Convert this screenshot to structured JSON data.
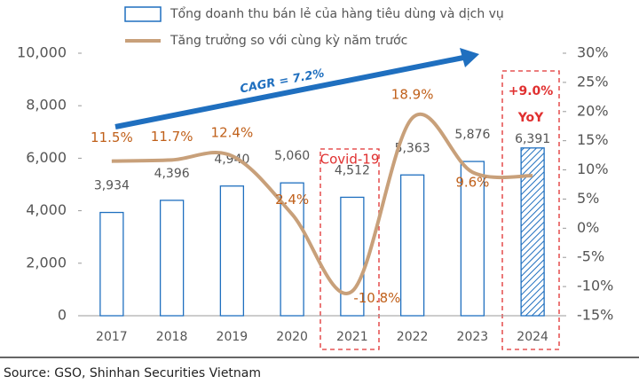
{
  "chart_data": {
    "type": "bar-line",
    "categories": [
      "2017",
      "2018",
      "2019",
      "2020",
      "2021",
      "2022",
      "2023",
      "2024"
    ],
    "series": [
      {
        "name": "Tổng doanh thu bán lẻ của hàng tiêu dùng và dịch vụ",
        "type": "bar",
        "color": "#1f6fbf",
        "values": [
          3934,
          4396,
          4940,
          5060,
          4512,
          5363,
          5876,
          6391
        ],
        "value_labels": [
          "3,934",
          "4,396",
          "4,940",
          "5,060",
          "4,512",
          "5,363",
          "5,876",
          "6,391"
        ]
      },
      {
        "name": "Tăng trưởng so với cùng kỳ năm trước",
        "type": "line",
        "axis": "y2",
        "color": "#c8a07a",
        "values": [
          11.5,
          11.7,
          12.4,
          2.4,
          -10.8,
          18.9,
          9.6,
          9.0
        ],
        "value_labels": [
          "11.5%",
          "11.7%",
          "12.4%",
          "2.4%",
          "-10.8%",
          "18.9%",
          "9.6%",
          null
        ]
      }
    ],
    "ylim": [
      0,
      10000
    ],
    "yticks": [
      {
        "value": 0,
        "label": "0"
      },
      {
        "value": 2000,
        "label": "2,000"
      },
      {
        "value": 4000,
        "label": "4,000"
      },
      {
        "value": 6000,
        "label": "6,000"
      },
      {
        "value": 8000,
        "label": "8,000"
      },
      {
        "value": 10000,
        "label": "10,000"
      }
    ],
    "y2lim": [
      -15,
      30
    ],
    "y2ticks": [
      {
        "value": -15,
        "label": "-15%"
      },
      {
        "value": -10,
        "label": "-10%"
      },
      {
        "value": -5,
        "label": "-5%"
      },
      {
        "value": 0,
        "label": "0%"
      },
      {
        "value": 5,
        "label": "5%"
      },
      {
        "value": 10,
        "label": "10%"
      },
      {
        "value": 15,
        "label": "15%"
      },
      {
        "value": 20,
        "label": "20%"
      },
      {
        "value": 25,
        "label": "25%"
      },
      {
        "value": 30,
        "label": "30%"
      }
    ],
    "annotations": {
      "cagr": "CAGR = 7.2%",
      "covid": "Covid-19",
      "yoy_value": "+9.0%",
      "yoy": "YoY"
    },
    "source": "Source: GSO, Shinhan Securities Vietnam"
  }
}
